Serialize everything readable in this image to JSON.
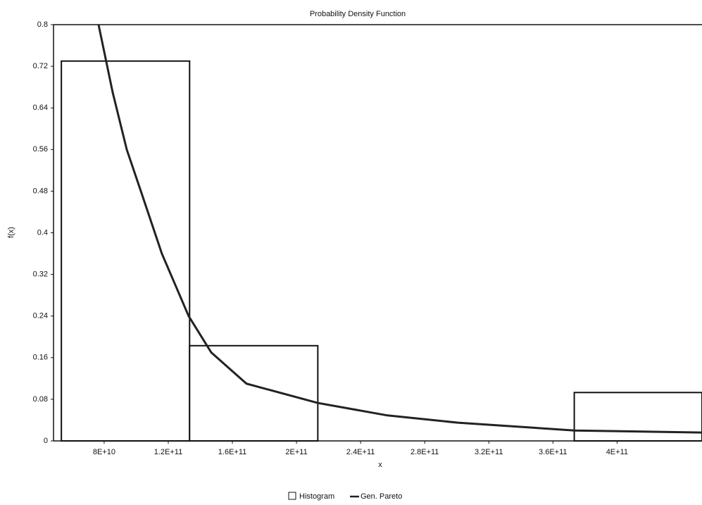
{
  "chart_data": {
    "type": "histogram",
    "title": "Probability Density Function",
    "x_label": "x",
    "y_label": "f(x)",
    "xlim": [
      48400000000,
      453000000000
    ],
    "ylim": [
      0,
      0.8
    ],
    "xticks": [
      {
        "value": 80000000000,
        "label": "8E+10"
      },
      {
        "value": 120000000000,
        "label": "1.2E+11"
      },
      {
        "value": 160000000000,
        "label": "1.6E+11"
      },
      {
        "value": 200000000000,
        "label": "2E+11"
      },
      {
        "value": 240000000000,
        "label": "2.4E+11"
      },
      {
        "value": 280000000000,
        "label": "2.8E+11"
      },
      {
        "value": 320000000000,
        "label": "3.2E+11"
      },
      {
        "value": 360000000000,
        "label": "3.6E+11"
      },
      {
        "value": 400000000000,
        "label": "4E+11"
      }
    ],
    "yticks": [
      0,
      0.08,
      0.16,
      0.24,
      0.32,
      0.4,
      0.48,
      0.56,
      0.64,
      0.72,
      0.8
    ],
    "histogram": {
      "name": "Histogram",
      "color": "#ffffff",
      "bins": [
        53300000000,
        133300000000,
        213300000000,
        293300000000,
        373300000000,
        453000000000
      ],
      "values": [
        0.73,
        0.183,
        0,
        0,
        0.093
      ]
    },
    "line": {
      "name": "Gen. Pareto",
      "color": "#222222",
      "x": [
        76500000000,
        85300000000,
        94100000000,
        102900000000,
        116000000000,
        132700000000,
        146800000000,
        168800000000,
        213200000000,
        256700000000,
        300700000000,
        373600000000,
        453000000000
      ],
      "values": [
        0.8,
        0.67,
        0.56,
        0.48,
        0.36,
        0.24,
        0.17,
        0.11,
        0.073,
        0.049,
        0.035,
        0.02,
        0.016
      ]
    }
  }
}
